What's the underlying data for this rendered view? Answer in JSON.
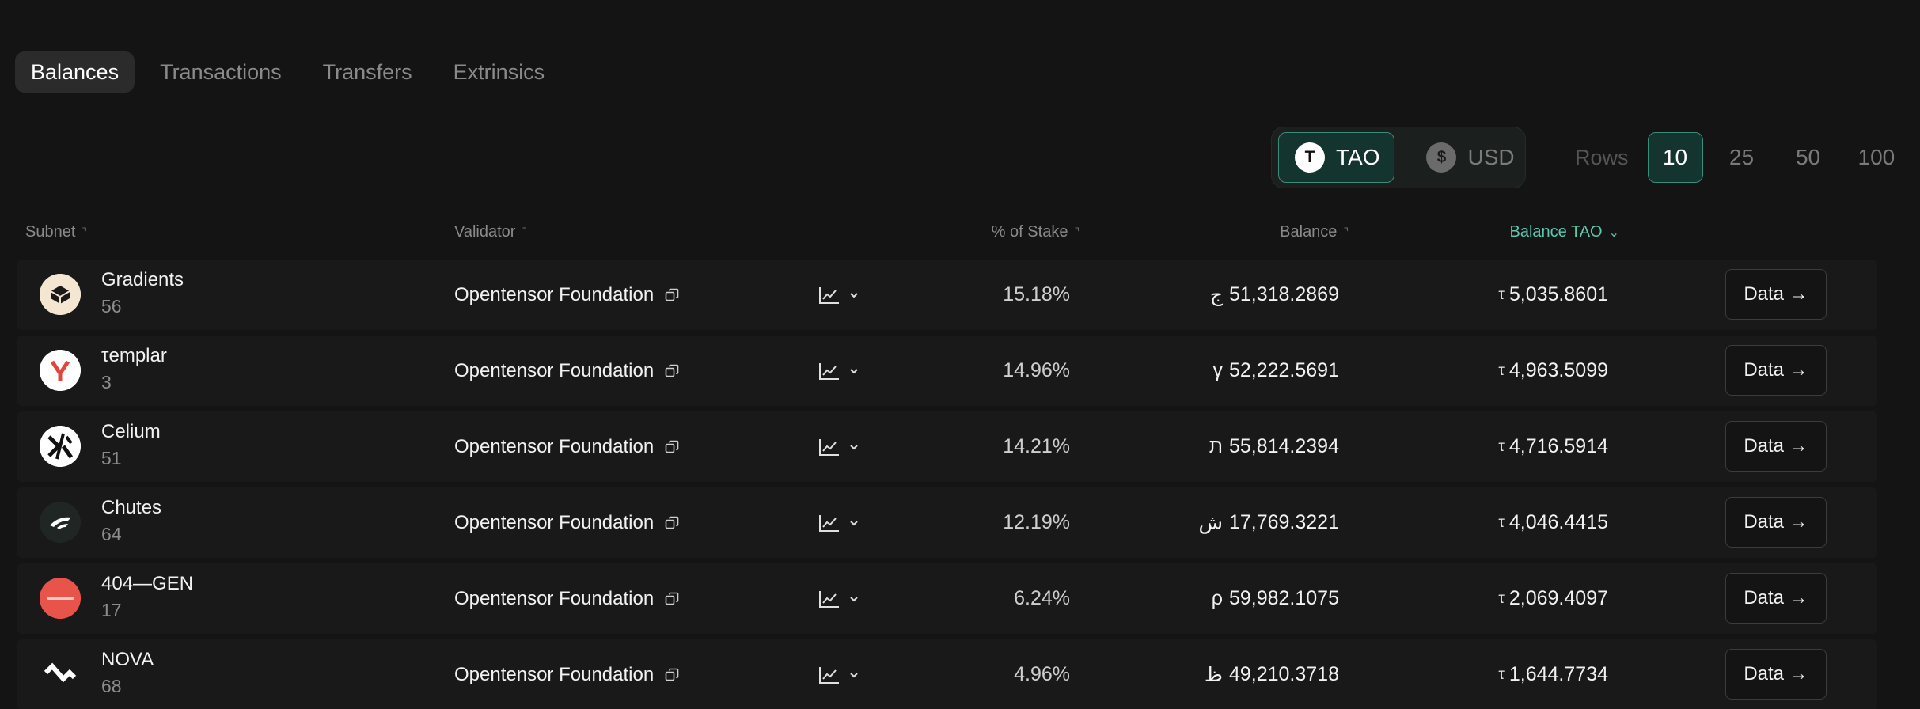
{
  "tabs": [
    {
      "label": "Balances",
      "active": true
    },
    {
      "label": "Transactions",
      "active": false
    },
    {
      "label": "Transfers",
      "active": false
    },
    {
      "label": "Extrinsics",
      "active": false
    }
  ],
  "currency": {
    "options": [
      {
        "label": "TAO",
        "symbol": "T",
        "active": true
      },
      {
        "label": "USD",
        "symbol": "$",
        "active": false
      }
    ]
  },
  "rows_selector": {
    "label": "Rows",
    "options": [
      "10",
      "25",
      "50",
      "100"
    ],
    "selected": "10"
  },
  "table": {
    "columns": {
      "subnet": "Subnet",
      "validator": "Validator",
      "pct_stake": "% of Stake",
      "balance": "Balance",
      "balance_tao": "Balance TAO"
    },
    "sorted_column": "balance_tao",
    "rows": [
      {
        "name": "Gradients",
        "netuid": "56",
        "validator": "Opentensor Foundation",
        "pct": "15.18%",
        "symbol": "ج",
        "balance": "51,318.2869",
        "tao_symbol": "τ",
        "balance_tao": "5,035.8601",
        "action": "Data →",
        "logo": "gradients-logo"
      },
      {
        "name": "τemplar",
        "netuid": "3",
        "validator": "Opentensor Foundation",
        "pct": "14.96%",
        "symbol": "γ",
        "balance": "52,222.5691",
        "tao_symbol": "τ",
        "balance_tao": "4,963.5099",
        "action": "Data →",
        "logo": "templar-logo"
      },
      {
        "name": "Celium",
        "netuid": "51",
        "validator": "Opentensor Foundation",
        "pct": "14.21%",
        "symbol": "ת",
        "balance": "55,814.2394",
        "tao_symbol": "τ",
        "balance_tao": "4,716.5914",
        "action": "Data →",
        "logo": "celium-logo"
      },
      {
        "name": "Chutes",
        "netuid": "64",
        "validator": "Opentensor Foundation",
        "pct": "12.19%",
        "symbol": "ش",
        "balance": "17,769.3221",
        "tao_symbol": "τ",
        "balance_tao": "4,046.4415",
        "action": "Data →",
        "logo": "chutes-logo"
      },
      {
        "name": "404—GEN",
        "netuid": "17",
        "validator": "Opentensor Foundation",
        "pct": "6.24%",
        "symbol": "ρ",
        "balance": "59,982.1075",
        "tao_symbol": "τ",
        "balance_tao": "2,069.4097",
        "action": "Data →",
        "logo": "404gen-logo"
      },
      {
        "name": "NOVA",
        "netuid": "68",
        "validator": "Opentensor Foundation",
        "pct": "4.96%",
        "symbol": "ظ",
        "balance": "49,210.3718",
        "tao_symbol": "τ",
        "balance_tao": "1,644.7734",
        "action": "Data →",
        "logo": "nova-logo"
      }
    ]
  },
  "colors": {
    "accent": "#5cc9ad",
    "background": "#141414",
    "row_bg": "#191919"
  }
}
